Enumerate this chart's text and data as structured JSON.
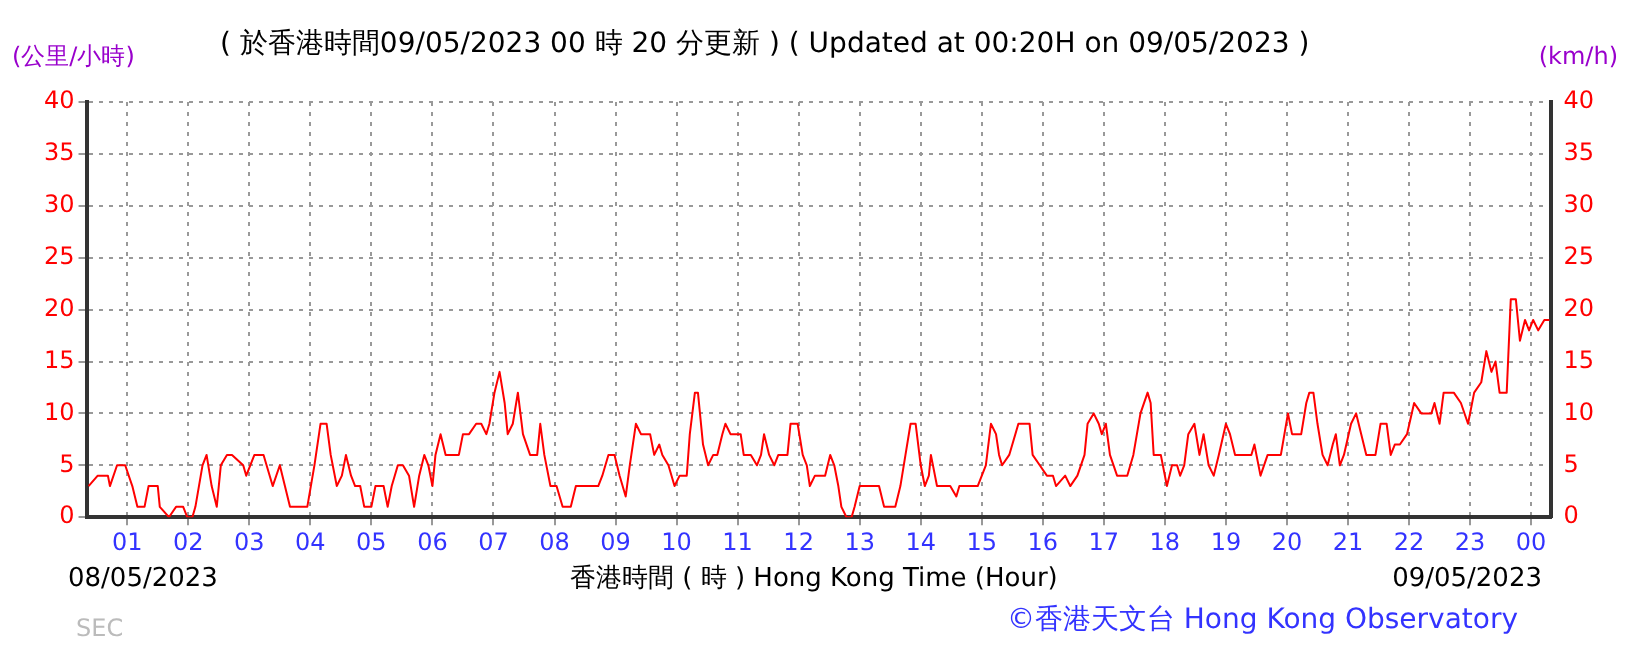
{
  "chart_data": {
    "type": "line",
    "title": "( 於香港時間09/05/2023 00 時 20 分更新 ) ( Updated at 00:20H on 09/05/2023 )",
    "ylabel": "(公里/小時)",
    "y2label": "(km/h)",
    "xlabel": "香港時間 ( 時 ) Hong Kong Time (Hour)",
    "annotations": [
      "08/05/2023",
      "09/05/2023",
      "©香港天文台 Hong Kong Observatory",
      "SEC"
    ],
    "xlim": [
      "2023-05-08T00:20",
      "2023-05-09T00:20"
    ],
    "xticks": [
      {
        "value": "2023-05-08T01:00",
        "label": "01"
      },
      {
        "value": "2023-05-08T02:00",
        "label": "02"
      },
      {
        "value": "2023-05-08T03:00",
        "label": "03"
      },
      {
        "value": "2023-05-08T04:00",
        "label": "04"
      },
      {
        "value": "2023-05-08T05:00",
        "label": "05"
      },
      {
        "value": "2023-05-08T06:00",
        "label": "06"
      },
      {
        "value": "2023-05-08T07:00",
        "label": "07"
      },
      {
        "value": "2023-05-08T08:00",
        "label": "08"
      },
      {
        "value": "2023-05-08T09:00",
        "label": "09"
      },
      {
        "value": "2023-05-08T10:00",
        "label": "10"
      },
      {
        "value": "2023-05-08T11:00",
        "label": "11"
      },
      {
        "value": "2023-05-08T12:00",
        "label": "12"
      },
      {
        "value": "2023-05-08T13:00",
        "label": "13"
      },
      {
        "value": "2023-05-08T14:00",
        "label": "14"
      },
      {
        "value": "2023-05-08T15:00",
        "label": "15"
      },
      {
        "value": "2023-05-08T16:00",
        "label": "16"
      },
      {
        "value": "2023-05-08T17:00",
        "label": "17"
      },
      {
        "value": "2023-05-08T18:00",
        "label": "18"
      },
      {
        "value": "2023-05-08T19:00",
        "label": "19"
      },
      {
        "value": "2023-05-08T20:00",
        "label": "20"
      },
      {
        "value": "2023-05-08T21:00",
        "label": "21"
      },
      {
        "value": "2023-05-08T22:00",
        "label": "22"
      },
      {
        "value": "2023-05-08T23:00",
        "label": "23"
      },
      {
        "value": "2023-05-09T00:00",
        "label": "00"
      }
    ],
    "ylim": [
      0,
      40
    ],
    "yticks": [
      0,
      5,
      10,
      15,
      20,
      25,
      30,
      35,
      40
    ],
    "y2lim": [
      0,
      40
    ],
    "y2ticks": [
      0,
      5,
      10,
      15,
      20,
      25,
      30,
      35,
      40
    ],
    "grid": true,
    "legend": false,
    "marker": "none",
    "line_style": "solid",
    "series": [
      {
        "color": "#ff0000",
        "x": [
          "2023-05-08T00:22",
          "2023-05-08T00:31",
          "2023-05-08T00:41",
          "2023-05-08T00:43",
          "2023-05-08T00:50",
          "2023-05-08T00:58",
          "2023-05-08T01:05",
          "2023-05-08T01:10",
          "2023-05-08T01:17",
          "2023-05-08T01:21",
          "2023-05-08T01:30",
          "2023-05-08T01:32",
          "2023-05-08T01:41",
          "2023-05-08T01:48",
          "2023-05-08T01:55",
          "2023-05-08T01:59",
          "2023-05-08T02:04",
          "2023-05-08T02:07",
          "2023-05-08T02:14",
          "2023-05-08T02:18",
          "2023-05-08T02:23",
          "2023-05-08T02:28",
          "2023-05-08T02:32",
          "2023-05-08T02:38",
          "2023-05-08T02:43",
          "2023-05-08T02:54",
          "2023-05-08T02:57",
          "2023-05-08T03:05",
          "2023-05-08T03:14",
          "2023-05-08T03:23",
          "2023-05-08T03:30",
          "2023-05-08T03:35",
          "2023-05-08T03:40",
          "2023-05-08T03:57",
          "2023-05-08T04:04",
          "2023-05-08T04:10",
          "2023-05-08T04:16",
          "2023-05-08T04:20",
          "2023-05-08T04:26",
          "2023-05-08T04:31",
          "2023-05-08T04:35",
          "2023-05-08T04:40",
          "2023-05-08T04:44",
          "2023-05-08T04:49",
          "2023-05-08T04:53",
          "2023-05-08T05:00",
          "2023-05-08T05:04",
          "2023-05-08T05:12",
          "2023-05-08T05:16",
          "2023-05-08T05:20",
          "2023-05-08T05:26",
          "2023-05-08T05:31",
          "2023-05-08T05:37",
          "2023-05-08T05:42",
          "2023-05-08T05:47",
          "2023-05-08T05:52",
          "2023-05-08T05:56",
          "2023-05-08T06:00",
          "2023-05-08T06:03",
          "2023-05-08T06:08",
          "2023-05-08T06:13",
          "2023-05-08T06:26",
          "2023-05-08T06:30",
          "2023-05-08T06:36",
          "2023-05-08T06:43",
          "2023-05-08T06:48",
          "2023-05-08T06:53",
          "2023-05-08T06:56",
          "2023-05-08T07:01",
          "2023-05-08T07:06",
          "2023-05-08T07:11",
          "2023-05-08T07:14",
          "2023-05-08T07:19",
          "2023-05-08T07:24",
          "2023-05-08T07:29",
          "2023-05-08T07:36",
          "2023-05-08T07:43",
          "2023-05-08T07:46",
          "2023-05-08T07:50",
          "2023-05-08T07:56",
          "2023-05-08T08:02",
          "2023-05-08T08:08",
          "2023-05-08T08:16",
          "2023-05-08T08:21",
          "2023-05-08T08:30",
          "2023-05-08T08:43",
          "2023-05-08T08:47",
          "2023-05-08T08:53",
          "2023-05-08T08:59",
          "2023-05-08T09:04",
          "2023-05-08T09:10",
          "2023-05-08T09:14",
          "2023-05-08T09:20",
          "2023-05-08T09:25",
          "2023-05-08T09:34",
          "2023-05-08T09:38",
          "2023-05-08T09:43",
          "2023-05-08T09:46",
          "2023-05-08T09:52",
          "2023-05-08T09:58",
          "2023-05-08T10:03",
          "2023-05-08T10:10",
          "2023-05-08T10:13",
          "2023-05-08T10:18",
          "2023-05-08T10:21",
          "2023-05-08T10:26",
          "2023-05-08T10:31",
          "2023-05-08T10:36",
          "2023-05-08T10:40",
          "2023-05-08T10:45",
          "2023-05-08T10:48",
          "2023-05-08T10:53",
          "2023-05-08T10:58",
          "2023-05-08T11:03",
          "2023-05-08T11:06",
          "2023-05-08T11:13",
          "2023-05-08T11:19",
          "2023-05-08T11:23",
          "2023-05-08T11:26",
          "2023-05-08T11:31",
          "2023-05-08T11:36",
          "2023-05-08T11:40",
          "2023-05-08T11:49",
          "2023-05-08T11:52",
          "2023-05-08T11:59",
          "2023-05-08T12:04",
          "2023-05-08T12:08",
          "2023-05-08T12:11",
          "2023-05-08T12:16",
          "2023-05-08T12:26",
          "2023-05-08T12:31",
          "2023-05-08T12:35",
          "2023-05-08T12:39",
          "2023-05-08T12:42",
          "2023-05-08T12:47",
          "2023-05-08T12:52",
          "2023-05-08T12:55",
          "2023-05-08T13:00",
          "2023-05-08T13:05",
          "2023-05-08T13:19",
          "2023-05-08T13:24",
          "2023-05-08T13:35",
          "2023-05-08T13:40",
          "2023-05-08T13:45",
          "2023-05-08T13:50",
          "2023-05-08T13:55",
          "2023-05-08T14:00",
          "2023-05-08T14:04",
          "2023-05-08T14:08",
          "2023-05-08T14:10",
          "2023-05-08T14:16",
          "2023-05-08T14:29",
          "2023-05-08T14:35",
          "2023-05-08T14:38",
          "2023-05-08T14:56",
          "2023-05-08T15:04",
          "2023-05-08T15:09",
          "2023-05-08T15:14",
          "2023-05-08T15:17",
          "2023-05-08T15:20",
          "2023-05-08T15:27",
          "2023-05-08T15:36",
          "2023-05-08T15:47",
          "2023-05-08T15:50",
          "2023-05-08T15:57",
          "2023-05-08T16:04",
          "2023-05-08T16:10",
          "2023-05-08T16:13",
          "2023-05-08T16:22",
          "2023-05-08T16:27",
          "2023-05-08T16:34",
          "2023-05-08T16:41",
          "2023-05-08T16:44",
          "2023-05-08T16:50",
          "2023-05-08T16:55",
          "2023-05-08T16:58",
          "2023-05-08T17:02",
          "2023-05-08T17:06",
          "2023-05-08T17:13",
          "2023-05-08T17:23",
          "2023-05-08T17:29",
          "2023-05-08T17:36",
          "2023-05-08T17:43",
          "2023-05-08T17:46",
          "2023-05-08T17:49",
          "2023-05-08T17:56",
          "2023-05-08T18:02",
          "2023-05-08T18:07",
          "2023-05-08T18:12",
          "2023-05-08T18:15",
          "2023-05-08T18:19",
          "2023-05-08T18:23",
          "2023-05-08T18:29",
          "2023-05-08T18:34",
          "2023-05-08T18:38",
          "2023-05-08T18:43",
          "2023-05-08T18:48",
          "2023-05-08T18:53",
          "2023-05-08T19:00",
          "2023-05-08T19:04",
          "2023-05-08T19:09",
          "2023-05-08T19:25",
          "2023-05-08T19:28",
          "2023-05-08T19:34",
          "2023-05-08T19:41",
          "2023-05-08T19:54",
          "2023-05-08T20:01",
          "2023-05-08T20:05",
          "2023-05-08T20:14",
          "2023-05-08T20:19",
          "2023-05-08T20:22",
          "2023-05-08T20:26",
          "2023-05-08T20:30",
          "2023-05-08T20:35",
          "2023-05-08T20:40",
          "2023-05-08T20:45",
          "2023-05-08T20:48",
          "2023-05-08T20:52",
          "2023-05-08T20:56",
          "2023-05-08T21:03",
          "2023-05-08T21:08",
          "2023-05-08T21:13",
          "2023-05-08T21:18",
          "2023-05-08T21:27",
          "2023-05-08T21:32",
          "2023-05-08T21:38",
          "2023-05-08T21:42",
          "2023-05-08T21:46",
          "2023-05-08T21:51",
          "2023-05-08T21:58",
          "2023-05-08T22:05",
          "2023-05-08T22:12",
          "2023-05-08T22:22",
          "2023-05-08T22:25",
          "2023-05-08T22:30",
          "2023-05-08T22:34",
          "2023-05-08T22:44",
          "2023-05-08T22:51",
          "2023-05-08T22:58",
          "2023-05-08T23:04",
          "2023-05-08T23:11",
          "2023-05-08T23:16",
          "2023-05-08T23:21",
          "2023-05-08T23:25",
          "2023-05-08T23:29",
          "2023-05-08T23:36",
          "2023-05-08T23:40",
          "2023-05-08T23:45",
          "2023-05-08T23:49",
          "2023-05-08T23:54",
          "2023-05-08T23:58",
          "2023-05-09T00:02",
          "2023-05-09T00:07",
          "2023-05-09T00:13",
          "2023-05-09T00:18"
        ],
        "values": [
          3,
          4,
          4,
          3,
          5,
          5,
          3,
          1,
          1,
          3,
          3,
          1,
          0,
          1,
          1,
          0,
          0,
          1,
          5,
          6,
          3,
          1,
          5,
          6,
          6,
          5,
          4,
          6,
          6,
          3,
          5,
          3,
          1,
          1,
          5,
          9,
          9,
          6,
          3,
          4,
          6,
          4,
          3,
          3,
          1,
          1,
          3,
          3,
          1,
          3,
          5,
          5,
          4,
          1,
          4,
          6,
          5,
          3,
          6,
          8,
          6,
          6,
          8,
          8,
          9,
          9,
          8,
          9,
          12,
          14,
          11,
          8,
          9,
          12,
          8,
          6,
          6,
          9,
          6,
          3,
          3,
          1,
          1,
          3,
          3,
          3,
          4,
          6,
          6,
          4,
          2,
          5,
          9,
          8,
          8,
          6,
          7,
          6,
          5,
          3,
          4,
          4,
          8,
          12,
          12,
          7,
          5,
          6,
          6,
          8,
          9,
          8,
          8,
          8,
          6,
          6,
          5,
          6,
          8,
          6,
          5,
          6,
          6,
          9,
          9,
          6,
          5,
          3,
          4,
          4,
          6,
          5,
          3,
          1,
          0,
          0,
          1,
          3,
          3,
          3,
          1,
          1,
          3,
          6,
          9,
          9,
          5,
          3,
          4,
          6,
          3,
          3,
          2,
          3,
          3,
          5,
          9,
          8,
          6,
          5,
          6,
          9,
          9,
          6,
          5,
          4,
          4,
          3,
          4,
          3,
          4,
          6,
          9,
          10,
          9,
          8,
          9,
          6,
          4,
          4,
          6,
          10,
          12,
          11,
          6,
          6,
          3,
          5,
          5,
          4,
          5,
          8,
          9,
          6,
          8,
          5,
          4,
          6,
          9,
          8,
          6,
          6,
          7,
          4,
          6,
          6,
          10,
          8,
          8,
          11,
          12,
          12,
          9,
          6,
          5,
          7,
          8,
          5,
          6,
          9,
          10,
          8,
          6,
          6,
          9,
          9,
          6,
          7,
          7,
          8,
          11,
          10,
          10,
          11,
          9,
          12,
          12,
          11,
          9,
          12,
          13,
          16,
          14,
          15,
          12,
          12,
          21,
          21,
          17,
          19,
          18,
          19,
          18,
          19,
          19
        ]
      }
    ]
  }
}
